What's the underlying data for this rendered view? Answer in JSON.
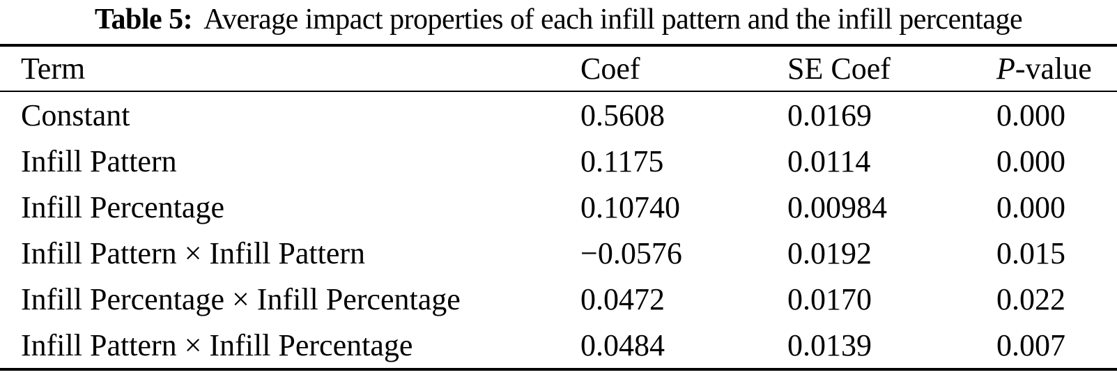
{
  "caption": {
    "label": "Table 5:",
    "text": "Average impact properties of each infill pattern and the infill percentage"
  },
  "columns": [
    {
      "text": "Term"
    },
    {
      "text": "Coef"
    },
    {
      "text": "SE Coef"
    },
    {
      "italic": "P",
      "text": "-value"
    }
  ],
  "rows": [
    {
      "term": "Constant",
      "coef": "0.5608",
      "se_coef": "0.0169",
      "p_value": "0.000"
    },
    {
      "term": "Infill Pattern",
      "coef": "0.1175",
      "se_coef": "0.0114",
      "p_value": "0.000"
    },
    {
      "term": "Infill Percentage",
      "coef": "0.10740",
      "se_coef": "0.00984",
      "p_value": "0.000"
    },
    {
      "term": "Infill Pattern × Infill Pattern",
      "coef": "−0.0576",
      "se_coef": "0.0192",
      "p_value": "0.015"
    },
    {
      "term": "Infill Percentage × Infill Percentage",
      "coef": "0.0472",
      "se_coef": "0.0170",
      "p_value": "0.022"
    },
    {
      "term": "Infill Pattern × Infill Percentage",
      "coef": "0.0484",
      "se_coef": "0.0139",
      "p_value": "0.007"
    }
  ],
  "colors": {
    "text": "#000000",
    "background": "#ffffff",
    "rule": "#000000"
  }
}
